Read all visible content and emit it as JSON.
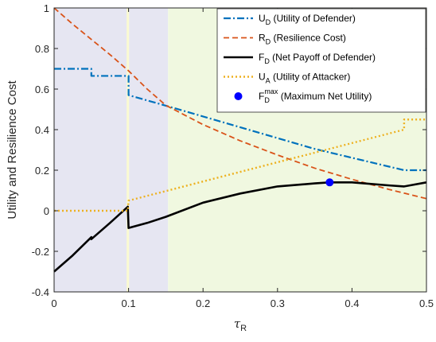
{
  "chart_data": {
    "type": "line",
    "xlabel": "τ",
    "xlabel_sub": "R",
    "ylabel": "Utility and Resilience Cost",
    "xlim": [
      0,
      0.5
    ],
    "ylim": [
      -0.4,
      1.0
    ],
    "xticks": [
      0,
      0.1,
      0.2,
      0.3,
      0.4,
      0.5
    ],
    "xtick_labels": [
      "0",
      "0.1",
      "0.2",
      "0.3",
      "0.4",
      "0.5"
    ],
    "yticks": [
      -0.4,
      -0.2,
      0,
      0.2,
      0.4,
      0.6,
      0.8,
      1.0
    ],
    "ytick_labels": [
      "-0.4",
      "-0.2",
      "0",
      "0.2",
      "0.4",
      "0.6",
      "0.8",
      "1"
    ],
    "grid": false,
    "legend_position": "top-right",
    "regions": [
      {
        "x_start": 0.0,
        "x_end": 0.153,
        "color": "#e6e6f2"
      },
      {
        "x_start": 0.153,
        "x_end": 0.5,
        "color": "#f0f8e0"
      }
    ],
    "vertical_lines": [
      {
        "x": 0.099,
        "color": "#fafad2"
      }
    ],
    "series": [
      {
        "label_main": "U",
        "label_sub": "D",
        "label_text": " (Utility of Defender)",
        "color": "#0072bd",
        "dash": "9,3,2,3",
        "width": 2.2,
        "points": [
          [
            0,
            0.7
          ],
          [
            0.05,
            0.7
          ],
          [
            0.05,
            0.665
          ],
          [
            0.1,
            0.665
          ],
          [
            0.1,
            0.59
          ],
          [
            0.1,
            0.57
          ],
          [
            0.153,
            0.515
          ],
          [
            0.35,
            0.305
          ],
          [
            0.47,
            0.2
          ],
          [
            0.5,
            0.2
          ]
        ]
      },
      {
        "label_main": "R",
        "label_sub": "D",
        "label_text": " (Resilience Cost)",
        "color": "#d95319",
        "dash": "7,4",
        "width": 1.8,
        "points": [
          [
            0,
            1.0
          ],
          [
            0.025,
            0.92
          ],
          [
            0.05,
            0.845
          ],
          [
            0.075,
            0.77
          ],
          [
            0.1,
            0.69
          ],
          [
            0.125,
            0.6
          ],
          [
            0.15,
            0.52
          ],
          [
            0.2,
            0.425
          ],
          [
            0.25,
            0.345
          ],
          [
            0.3,
            0.275
          ],
          [
            0.35,
            0.21
          ],
          [
            0.4,
            0.155
          ],
          [
            0.45,
            0.105
          ],
          [
            0.5,
            0.06
          ]
        ]
      },
      {
        "label_main": "F",
        "label_sub": "D",
        "label_text": " (Net Payoff of Defender)",
        "color": "#000000",
        "dash": "",
        "width": 2.6,
        "points": [
          [
            0,
            -0.3
          ],
          [
            0.025,
            -0.22
          ],
          [
            0.05,
            -0.13
          ],
          [
            0.05,
            -0.14
          ],
          [
            0.075,
            -0.06
          ],
          [
            0.099,
            0.02
          ],
          [
            0.1,
            -0.085
          ],
          [
            0.125,
            -0.06
          ],
          [
            0.15,
            -0.03
          ],
          [
            0.2,
            0.04
          ],
          [
            0.25,
            0.085
          ],
          [
            0.3,
            0.12
          ],
          [
            0.35,
            0.135
          ],
          [
            0.37,
            0.14
          ],
          [
            0.4,
            0.14
          ],
          [
            0.45,
            0.125
          ],
          [
            0.47,
            0.12
          ],
          [
            0.5,
            0.14
          ]
        ]
      },
      {
        "label_main": "U",
        "label_sub": "A",
        "label_text": " (Utility of Attacker)",
        "color": "#edb120",
        "dash": "2,3",
        "width": 2.4,
        "points": [
          [
            0,
            0.0
          ],
          [
            0.099,
            0.0
          ],
          [
            0.1,
            0.05
          ],
          [
            0.153,
            0.1
          ],
          [
            0.47,
            0.4
          ],
          [
            0.47,
            0.45
          ],
          [
            0.5,
            0.45
          ]
        ]
      }
    ],
    "markers": [
      {
        "label_main": "F",
        "label_sub": "D",
        "label_sup": "max",
        "label_text": " (Maximum Net Utility)",
        "color": "#0000ff",
        "x": 0.37,
        "y": 0.14
      }
    ]
  }
}
